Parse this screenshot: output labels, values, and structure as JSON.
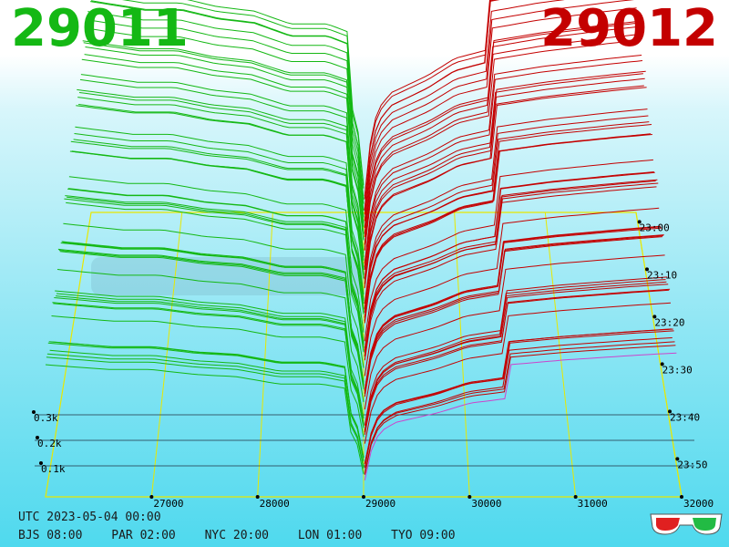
{
  "header": {
    "bid": "29011",
    "ask": "29012"
  },
  "colors": {
    "bid": "#14b814",
    "ask": "#c40000",
    "grid": "#e8e800",
    "recent": "#cc44cc"
  },
  "footer": {
    "utc": "UTC 2023-05-04 00:00",
    "zones": [
      "BJS 08:00",
      "PAR 02:00",
      "NYC 20:00",
      "LON 01:00",
      "TYO 09:00"
    ]
  },
  "icons": [
    "3d-glasses-icon"
  ],
  "chart_data": {
    "type": "3d-depth",
    "x_ticks": [
      "27000",
      "28000",
      "29000",
      "30000",
      "31000",
      "32000"
    ],
    "volume_ticks": [
      "0.1k",
      "0.2k",
      "0.3k"
    ],
    "time_ticks": [
      "23:00",
      "23:10",
      "23:20",
      "23:30",
      "23:40",
      "23:50"
    ],
    "price_range": [
      26000,
      32000
    ],
    "mid_price": 29011.5,
    "bid_profile": [
      [
        26000,
        0.26
      ],
      [
        26600,
        0.25
      ],
      [
        27000,
        0.25
      ],
      [
        27400,
        0.24
      ],
      [
        27800,
        0.235
      ],
      [
        28200,
        0.22
      ],
      [
        28600,
        0.22
      ],
      [
        28850,
        0.21
      ],
      [
        28880,
        0.12
      ],
      [
        28950,
        0.09
      ],
      [
        29011,
        0.02
      ]
    ],
    "ask_profile": [
      [
        29012,
        0.02
      ],
      [
        29050,
        0.07
      ],
      [
        29150,
        0.12
      ],
      [
        29300,
        0.14
      ],
      [
        29700,
        0.16
      ],
      [
        30000,
        0.18
      ],
      [
        30360,
        0.19
      ],
      [
        30380,
        0.26
      ],
      [
        30900,
        0.27
      ],
      [
        31600,
        0.28
      ],
      [
        32000,
        0.285
      ]
    ],
    "grid": true,
    "legend": "none"
  }
}
